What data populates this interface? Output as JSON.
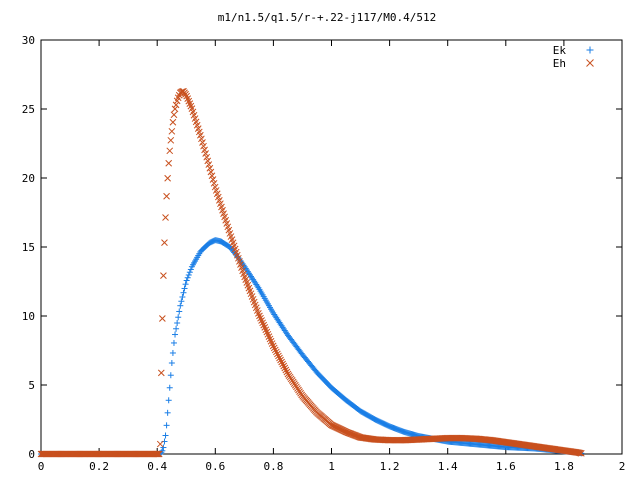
{
  "chart_data": {
    "type": "scatter",
    "title": "m1/n1.5/q1.5/r-+.22-j117/M0.4/512",
    "xlabel": "",
    "ylabel": "",
    "xlim": [
      0,
      2
    ],
    "ylim": [
      0,
      30
    ],
    "x_ticks": [
      0,
      0.2,
      0.4,
      0.6,
      0.8,
      1,
      1.2,
      1.4,
      1.6,
      1.8,
      2
    ],
    "x_tick_labels": [
      "0",
      "0.2",
      "0.4",
      "0.6",
      "0.8",
      "1",
      "1.2",
      "1.4",
      "1.6",
      "1.8",
      "2"
    ],
    "y_ticks": [
      0,
      5,
      10,
      15,
      20,
      25,
      30
    ],
    "y_tick_labels": [
      "0",
      "5",
      "10",
      "15",
      "20",
      "25",
      "30"
    ],
    "grid": false,
    "legend": "top-right",
    "series": [
      {
        "name": "Ek",
        "marker": "plus",
        "color": "#1a7ee6",
        "points": [
          [
            0.0,
            0.0
          ],
          [
            0.2,
            0.0
          ],
          [
            0.4,
            0.0
          ],
          [
            0.41,
            0.0
          ],
          [
            0.42,
            0.3
          ],
          [
            0.43,
            1.5
          ],
          [
            0.44,
            4.0
          ],
          [
            0.45,
            6.5
          ],
          [
            0.46,
            8.5
          ],
          [
            0.48,
            10.8
          ],
          [
            0.5,
            12.5
          ],
          [
            0.52,
            13.6
          ],
          [
            0.55,
            14.7
          ],
          [
            0.58,
            15.3
          ],
          [
            0.6,
            15.5
          ],
          [
            0.62,
            15.4
          ],
          [
            0.65,
            15.0
          ],
          [
            0.68,
            14.2
          ],
          [
            0.7,
            13.6
          ],
          [
            0.75,
            12.0
          ],
          [
            0.8,
            10.2
          ],
          [
            0.85,
            8.6
          ],
          [
            0.9,
            7.2
          ],
          [
            0.95,
            5.9
          ],
          [
            1.0,
            4.8
          ],
          [
            1.05,
            3.9
          ],
          [
            1.1,
            3.1
          ],
          [
            1.15,
            2.5
          ],
          [
            1.2,
            2.0
          ],
          [
            1.25,
            1.6
          ],
          [
            1.3,
            1.3
          ],
          [
            1.35,
            1.1
          ],
          [
            1.4,
            0.9
          ],
          [
            1.45,
            0.8
          ],
          [
            1.5,
            0.7
          ],
          [
            1.55,
            0.6
          ],
          [
            1.6,
            0.5
          ],
          [
            1.65,
            0.45
          ],
          [
            1.7,
            0.4
          ],
          [
            1.75,
            0.3
          ],
          [
            1.8,
            0.2
          ],
          [
            1.85,
            0.1
          ],
          [
            1.86,
            0.05
          ]
        ]
      },
      {
        "name": "Eh",
        "marker": "cross",
        "color": "#c8501e",
        "points": [
          [
            0.0,
            0.0
          ],
          [
            0.2,
            0.0
          ],
          [
            0.4,
            0.0
          ],
          [
            0.41,
            0.0
          ],
          [
            0.415,
            7.1
          ],
          [
            0.42,
            12.0
          ],
          [
            0.425,
            15.3
          ],
          [
            0.43,
            17.8
          ],
          [
            0.435,
            19.7
          ],
          [
            0.44,
            21.2
          ],
          [
            0.445,
            22.4
          ],
          [
            0.45,
            23.3
          ],
          [
            0.455,
            24.2
          ],
          [
            0.46,
            24.9
          ],
          [
            0.47,
            25.7
          ],
          [
            0.48,
            26.2
          ],
          [
            0.49,
            26.3
          ],
          [
            0.5,
            26.0
          ],
          [
            0.52,
            25.0
          ],
          [
            0.55,
            23.0
          ],
          [
            0.58,
            20.8
          ],
          [
            0.6,
            19.3
          ],
          [
            0.65,
            16.0
          ],
          [
            0.7,
            12.9
          ],
          [
            0.75,
            10.1
          ],
          [
            0.8,
            7.8
          ],
          [
            0.85,
            5.8
          ],
          [
            0.9,
            4.2
          ],
          [
            0.95,
            3.0
          ],
          [
            1.0,
            2.1
          ],
          [
            1.05,
            1.6
          ],
          [
            1.1,
            1.2
          ],
          [
            1.15,
            1.05
          ],
          [
            1.2,
            1.0
          ],
          [
            1.25,
            1.0
          ],
          [
            1.3,
            1.05
          ],
          [
            1.35,
            1.1
          ],
          [
            1.4,
            1.15
          ],
          [
            1.45,
            1.15
          ],
          [
            1.5,
            1.1
          ],
          [
            1.55,
            1.0
          ],
          [
            1.6,
            0.85
          ],
          [
            1.65,
            0.7
          ],
          [
            1.7,
            0.55
          ],
          [
            1.75,
            0.4
          ],
          [
            1.8,
            0.25
          ],
          [
            1.85,
            0.1
          ],
          [
            1.86,
            0.05
          ]
        ]
      }
    ]
  }
}
